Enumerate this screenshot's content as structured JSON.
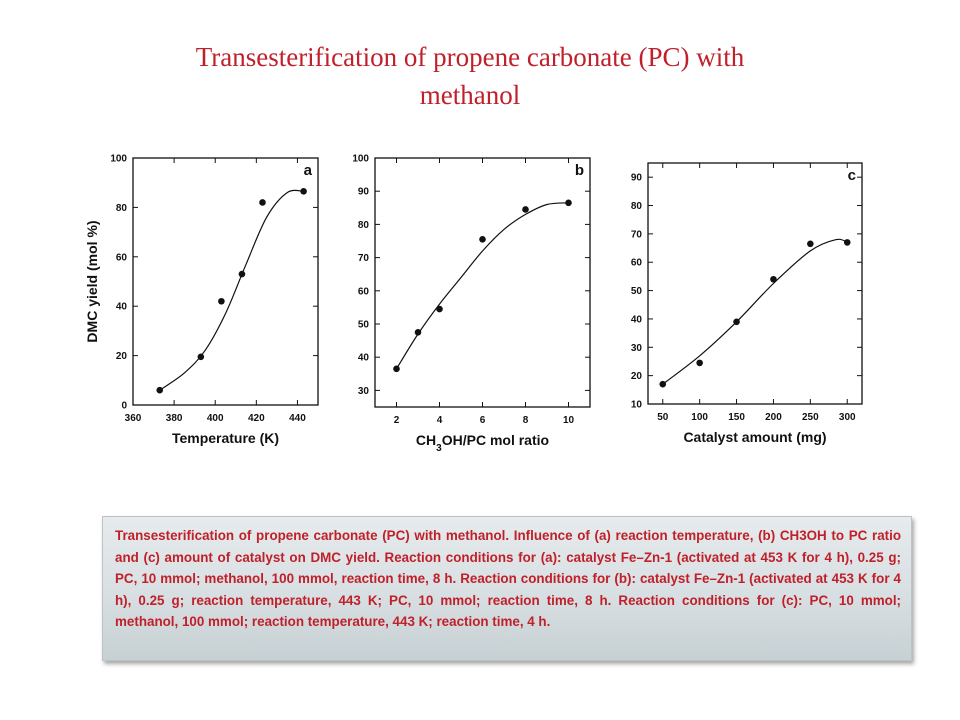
{
  "slide": {
    "title_line1": "Transesterification  of propene carbonate (PC) with",
    "title_line2": "methanol"
  },
  "caption": "Transesterification of propene carbonate (PC) with methanol. Influence of (a) reaction temperature, (b) CH3OH to PC ratio and (c) amount of catalyst on DMC yield. Reaction conditions for (a): catalyst Fe–Zn-1 (activated at 453 K for 4 h), 0.25 g; PC, 10 mmol; methanol, 100 mmol, reaction time, 8 h. Reaction conditions for (b): catalyst Fe–Zn-1 (activated at 453 K for 4 h), 0.25 g; reaction temperature, 443 K; PC, 10 mmol; reaction time, 8 h. Reaction conditions for (c): PC, 10 mmol; methanol, 100 mmol; reaction temperature, 443 K; reaction time, 4 h.",
  "colors": {
    "title": "#c0202a",
    "caption_text": "#c0202a",
    "ink": "#111111"
  },
  "chart_data": [
    {
      "panel": "a",
      "type": "scatter",
      "xlabel": "Temperature (K)",
      "ylabel": "DMC yield (mol %)",
      "xlim": [
        360,
        450
      ],
      "ylim": [
        0,
        100
      ],
      "xticks": [
        360,
        380,
        400,
        420,
        440
      ],
      "yticks": [
        0,
        20,
        40,
        60,
        80,
        100
      ],
      "x": [
        373,
        393,
        403,
        413,
        423,
        443
      ],
      "y": [
        6,
        19.5,
        42,
        53,
        82,
        86.5
      ],
      "fit_curve": {
        "x": [
          373,
          385,
          395,
          405,
          415,
          425,
          435,
          443
        ],
        "y": [
          6,
          13,
          22,
          37,
          57,
          76,
          86,
          86.5
        ]
      },
      "grid": false
    },
    {
      "panel": "b",
      "type": "scatter",
      "xlabel": "CH3OH/PC mol ratio",
      "ylabel": "",
      "xlim": [
        1,
        11
      ],
      "ylim": [
        25,
        100
      ],
      "xticks": [
        2,
        4,
        6,
        8,
        10
      ],
      "yticks": [
        30,
        40,
        50,
        60,
        70,
        80,
        90,
        100
      ],
      "x": [
        2,
        3,
        4,
        6,
        8,
        10
      ],
      "y": [
        36.5,
        47.5,
        54.5,
        75.5,
        84.5,
        86.5
      ],
      "fit_curve": {
        "x": [
          2,
          3,
          4,
          5,
          6,
          7,
          8,
          9,
          10
        ],
        "y": [
          36.5,
          47,
          56,
          64,
          72,
          78.5,
          83,
          86,
          86.5
        ]
      },
      "grid": false
    },
    {
      "panel": "c",
      "type": "scatter",
      "xlabel": "Catalyst amount (mg)",
      "ylabel": "",
      "xlim": [
        30,
        320
      ],
      "ylim": [
        10,
        95
      ],
      "xticks": [
        50,
        100,
        150,
        200,
        250,
        300
      ],
      "yticks": [
        10,
        20,
        30,
        40,
        50,
        60,
        70,
        80,
        90
      ],
      "x": [
        50,
        100,
        150,
        200,
        250,
        300
      ],
      "y": [
        17,
        24.5,
        39,
        54,
        66.5,
        67
      ],
      "fit_curve": {
        "x": [
          50,
          100,
          150,
          200,
          250,
          285,
          300
        ],
        "y": [
          17,
          27,
          39,
          52.5,
          64,
          68,
          67
        ]
      },
      "grid": false
    }
  ]
}
